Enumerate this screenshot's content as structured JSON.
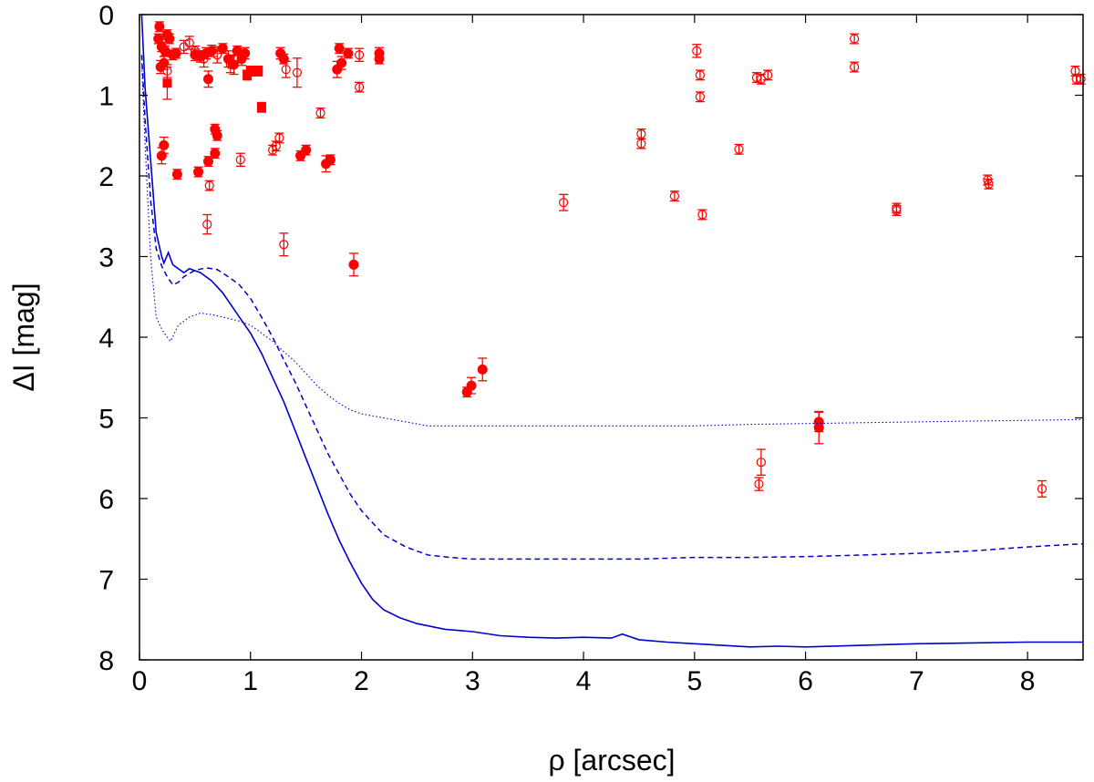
{
  "chart_data": {
    "type": "scatter",
    "title": "",
    "xlabel": "ρ [arcsec]",
    "ylabel": "ΔI [mag]",
    "xlim": [
      0,
      8.5
    ],
    "ylim": [
      0,
      8
    ],
    "y_inverted": true,
    "x_ticks": [
      0,
      1,
      2,
      3,
      4,
      5,
      6,
      7,
      8
    ],
    "y_ticks": [
      0,
      1,
      2,
      3,
      4,
      5,
      6,
      7,
      8
    ],
    "x_tick_labels": [
      "0",
      "1",
      "2",
      "3",
      "4",
      "5",
      "6",
      "7",
      "8"
    ],
    "y_tick_labels": [
      "0",
      "1",
      "2",
      "3",
      "4",
      "5",
      "6",
      "7",
      "8"
    ],
    "grid": false,
    "legend": "none",
    "colors": {
      "points": "#ff0000",
      "curves": "#0000cc",
      "axes": "#000000"
    },
    "series": [
      {
        "name": "filled-circle-detections",
        "marker": "filled-circle",
        "points": [
          [
            0.18,
            0.15,
            0.06
          ],
          [
            0.17,
            0.3,
            0.06
          ],
          [
            0.2,
            0.4,
            0.06
          ],
          [
            0.23,
            0.45,
            0.06
          ],
          [
            0.25,
            0.25,
            0.06
          ],
          [
            0.27,
            0.3,
            0.06
          ],
          [
            0.3,
            0.5,
            0.06
          ],
          [
            0.22,
            0.6,
            0.08
          ],
          [
            0.19,
            0.65,
            0.08
          ],
          [
            0.33,
            0.48,
            0.06
          ],
          [
            0.5,
            0.5,
            0.07
          ],
          [
            0.55,
            0.52,
            0.07
          ],
          [
            0.6,
            0.48,
            0.07
          ],
          [
            0.65,
            0.45,
            0.07
          ],
          [
            0.75,
            0.42,
            0.06
          ],
          [
            0.8,
            0.55,
            0.1
          ],
          [
            0.85,
            0.62,
            0.12
          ],
          [
            0.88,
            0.45,
            0.06
          ],
          [
            0.92,
            0.55,
            0.08
          ],
          [
            0.95,
            0.48,
            0.07
          ],
          [
            0.62,
            0.8,
            0.1
          ],
          [
            1.27,
            0.48,
            0.07
          ],
          [
            1.3,
            0.55,
            0.06
          ],
          [
            1.78,
            0.68,
            0.1
          ],
          [
            1.82,
            0.6,
            0.08
          ],
          [
            1.8,
            0.42,
            0.06
          ],
          [
            1.88,
            0.48,
            0.06
          ],
          [
            2.16,
            0.48,
            0.07
          ],
          [
            2.16,
            0.55,
            0.06
          ],
          [
            0.22,
            1.62,
            0.1
          ],
          [
            0.2,
            1.75,
            0.1
          ],
          [
            0.34,
            1.98,
            0.06
          ],
          [
            0.53,
            1.95,
            0.06
          ],
          [
            0.62,
            1.82,
            0.06
          ],
          [
            0.68,
            1.72,
            0.06
          ],
          [
            0.68,
            1.42,
            0.06
          ],
          [
            0.7,
            1.5,
            0.06
          ],
          [
            1.45,
            1.75,
            0.06
          ],
          [
            1.5,
            1.68,
            0.06
          ],
          [
            1.68,
            1.85,
            0.1
          ],
          [
            1.72,
            1.8,
            0.06
          ],
          [
            1.93,
            3.1,
            0.14
          ],
          [
            2.95,
            4.68,
            0.06
          ],
          [
            2.99,
            4.6,
            0.1
          ],
          [
            3.09,
            4.4,
            0.14
          ],
          [
            6.12,
            5.05,
            0.12
          ],
          [
            6.12,
            5.12,
            0.2
          ]
        ]
      },
      {
        "name": "filled-square-detections",
        "marker": "filled-square",
        "points": [
          [
            0.25,
            0.85,
            0.2
          ],
          [
            0.97,
            0.75,
            0.06
          ],
          [
            1.0,
            0.7,
            0.06
          ],
          [
            1.07,
            0.7,
            0.06
          ],
          [
            1.1,
            1.15,
            0.06
          ]
        ]
      },
      {
        "name": "open-circle-detections",
        "marker": "open-circle",
        "points": [
          [
            0.25,
            0.7,
            0.08
          ],
          [
            0.4,
            0.4,
            0.08
          ],
          [
            0.45,
            0.35,
            0.08
          ],
          [
            0.5,
            0.45,
            0.06
          ],
          [
            0.58,
            0.55,
            0.1
          ],
          [
            0.7,
            0.5,
            0.1
          ],
          [
            0.82,
            0.62,
            0.1
          ],
          [
            1.32,
            0.68,
            0.1
          ],
          [
            1.42,
            0.72,
            0.18
          ],
          [
            1.98,
            0.5,
            0.08
          ],
          [
            1.98,
            0.9,
            0.06
          ],
          [
            1.63,
            1.22,
            0.06
          ],
          [
            1.2,
            1.68,
            0.06
          ],
          [
            1.23,
            1.63,
            0.06
          ],
          [
            1.26,
            1.53,
            0.06
          ],
          [
            0.91,
            1.8,
            0.08
          ],
          [
            0.63,
            2.12,
            0.06
          ],
          [
            0.61,
            2.6,
            0.12
          ],
          [
            1.3,
            2.85,
            0.14
          ],
          [
            3.82,
            2.33,
            0.1
          ],
          [
            4.52,
            1.48,
            0.06
          ],
          [
            4.52,
            1.6,
            0.06
          ],
          [
            4.82,
            2.25,
            0.06
          ],
          [
            5.02,
            0.45,
            0.08
          ],
          [
            5.05,
            0.75,
            0.06
          ],
          [
            5.05,
            1.02,
            0.06
          ],
          [
            5.07,
            2.48,
            0.06
          ],
          [
            5.4,
            1.67,
            0.06
          ],
          [
            5.56,
            0.78,
            0.06
          ],
          [
            5.6,
            0.8,
            0.06
          ],
          [
            5.66,
            0.75,
            0.06
          ],
          [
            5.6,
            5.55,
            0.16
          ],
          [
            5.58,
            5.82,
            0.08
          ],
          [
            6.44,
            0.3,
            0.06
          ],
          [
            6.44,
            0.65,
            0.06
          ],
          [
            6.82,
            2.4,
            0.06
          ],
          [
            6.82,
            2.43,
            0.06
          ],
          [
            7.64,
            2.05,
            0.06
          ],
          [
            7.65,
            2.1,
            0.06
          ],
          [
            8.13,
            5.88,
            0.1
          ],
          [
            8.43,
            0.7,
            0.06
          ],
          [
            8.44,
            0.8,
            0.06
          ],
          [
            8.48,
            0.8,
            0.06
          ]
        ]
      },
      {
        "name": "contrast-curve-solid",
        "line_style": "solid",
        "points": [
          [
            0.02,
            0.0
          ],
          [
            0.05,
            0.9
          ],
          [
            0.1,
            1.8
          ],
          [
            0.15,
            2.7
          ],
          [
            0.2,
            3.0
          ],
          [
            0.22,
            3.08
          ],
          [
            0.26,
            2.95
          ],
          [
            0.3,
            3.1
          ],
          [
            0.35,
            3.15
          ],
          [
            0.4,
            3.2
          ],
          [
            0.45,
            3.15
          ],
          [
            0.55,
            3.2
          ],
          [
            0.65,
            3.3
          ],
          [
            0.75,
            3.45
          ],
          [
            0.9,
            3.75
          ],
          [
            1.0,
            3.95
          ],
          [
            1.1,
            4.2
          ],
          [
            1.2,
            4.5
          ],
          [
            1.3,
            4.8
          ],
          [
            1.4,
            5.15
          ],
          [
            1.5,
            5.5
          ],
          [
            1.6,
            5.85
          ],
          [
            1.7,
            6.2
          ],
          [
            1.8,
            6.52
          ],
          [
            1.9,
            6.8
          ],
          [
            2.0,
            7.05
          ],
          [
            2.1,
            7.25
          ],
          [
            2.2,
            7.38
          ],
          [
            2.35,
            7.48
          ],
          [
            2.5,
            7.55
          ],
          [
            2.75,
            7.62
          ],
          [
            3.0,
            7.65
          ],
          [
            3.25,
            7.7
          ],
          [
            3.5,
            7.72
          ],
          [
            3.75,
            7.73
          ],
          [
            4.0,
            7.72
          ],
          [
            4.25,
            7.73
          ],
          [
            4.35,
            7.68
          ],
          [
            4.5,
            7.75
          ],
          [
            4.75,
            7.78
          ],
          [
            5.0,
            7.8
          ],
          [
            5.25,
            7.82
          ],
          [
            5.5,
            7.84
          ],
          [
            5.75,
            7.83
          ],
          [
            6.0,
            7.84
          ],
          [
            6.5,
            7.82
          ],
          [
            7.0,
            7.8
          ],
          [
            7.5,
            7.79
          ],
          [
            8.0,
            7.78
          ],
          [
            8.5,
            7.78
          ]
        ]
      },
      {
        "name": "contrast-curve-dashed",
        "line_style": "dashed",
        "points": [
          [
            0.02,
            0.5
          ],
          [
            0.05,
            1.3
          ],
          [
            0.1,
            2.3
          ],
          [
            0.15,
            2.9
          ],
          [
            0.2,
            3.12
          ],
          [
            0.25,
            3.25
          ],
          [
            0.3,
            3.35
          ],
          [
            0.35,
            3.32
          ],
          [
            0.4,
            3.25
          ],
          [
            0.5,
            3.17
          ],
          [
            0.6,
            3.14
          ],
          [
            0.7,
            3.16
          ],
          [
            0.8,
            3.25
          ],
          [
            0.9,
            3.35
          ],
          [
            1.0,
            3.52
          ],
          [
            1.1,
            3.75
          ],
          [
            1.2,
            4.0
          ],
          [
            1.3,
            4.28
          ],
          [
            1.4,
            4.55
          ],
          [
            1.5,
            4.85
          ],
          [
            1.6,
            5.15
          ],
          [
            1.7,
            5.45
          ],
          [
            1.8,
            5.7
          ],
          [
            1.9,
            5.95
          ],
          [
            2.0,
            6.15
          ],
          [
            2.1,
            6.3
          ],
          [
            2.2,
            6.45
          ],
          [
            2.4,
            6.6
          ],
          [
            2.6,
            6.7
          ],
          [
            2.8,
            6.73
          ],
          [
            3.0,
            6.75
          ],
          [
            3.5,
            6.75
          ],
          [
            4.0,
            6.75
          ],
          [
            4.5,
            6.75
          ],
          [
            5.0,
            6.73
          ],
          [
            5.5,
            6.73
          ],
          [
            6.0,
            6.72
          ],
          [
            6.5,
            6.7
          ],
          [
            7.0,
            6.68
          ],
          [
            7.5,
            6.65
          ],
          [
            8.0,
            6.6
          ],
          [
            8.5,
            6.56
          ]
        ]
      },
      {
        "name": "contrast-curve-dotted",
        "line_style": "dotted",
        "points": [
          [
            0.02,
            0.6
          ],
          [
            0.05,
            1.6
          ],
          [
            0.1,
            3.0
          ],
          [
            0.15,
            3.75
          ],
          [
            0.2,
            3.9
          ],
          [
            0.25,
            4.0
          ],
          [
            0.28,
            4.05
          ],
          [
            0.35,
            3.85
          ],
          [
            0.45,
            3.75
          ],
          [
            0.55,
            3.7
          ],
          [
            0.65,
            3.72
          ],
          [
            0.75,
            3.75
          ],
          [
            0.9,
            3.8
          ],
          [
            1.0,
            3.85
          ],
          [
            1.1,
            3.95
          ],
          [
            1.2,
            4.05
          ],
          [
            1.3,
            4.18
          ],
          [
            1.4,
            4.3
          ],
          [
            1.5,
            4.45
          ],
          [
            1.6,
            4.6
          ],
          [
            1.7,
            4.72
          ],
          [
            1.8,
            4.82
          ],
          [
            1.9,
            4.9
          ],
          [
            2.0,
            4.95
          ],
          [
            2.2,
            5.0
          ],
          [
            2.4,
            5.05
          ],
          [
            2.6,
            5.1
          ],
          [
            2.8,
            5.1
          ],
          [
            3.0,
            5.1
          ],
          [
            3.5,
            5.1
          ],
          [
            4.0,
            5.1
          ],
          [
            4.5,
            5.1
          ],
          [
            5.0,
            5.1
          ],
          [
            5.5,
            5.08
          ],
          [
            6.0,
            5.07
          ],
          [
            6.5,
            5.06
          ],
          [
            7.0,
            5.05
          ],
          [
            7.5,
            5.04
          ],
          [
            8.0,
            5.03
          ],
          [
            8.5,
            5.02
          ]
        ]
      }
    ]
  }
}
